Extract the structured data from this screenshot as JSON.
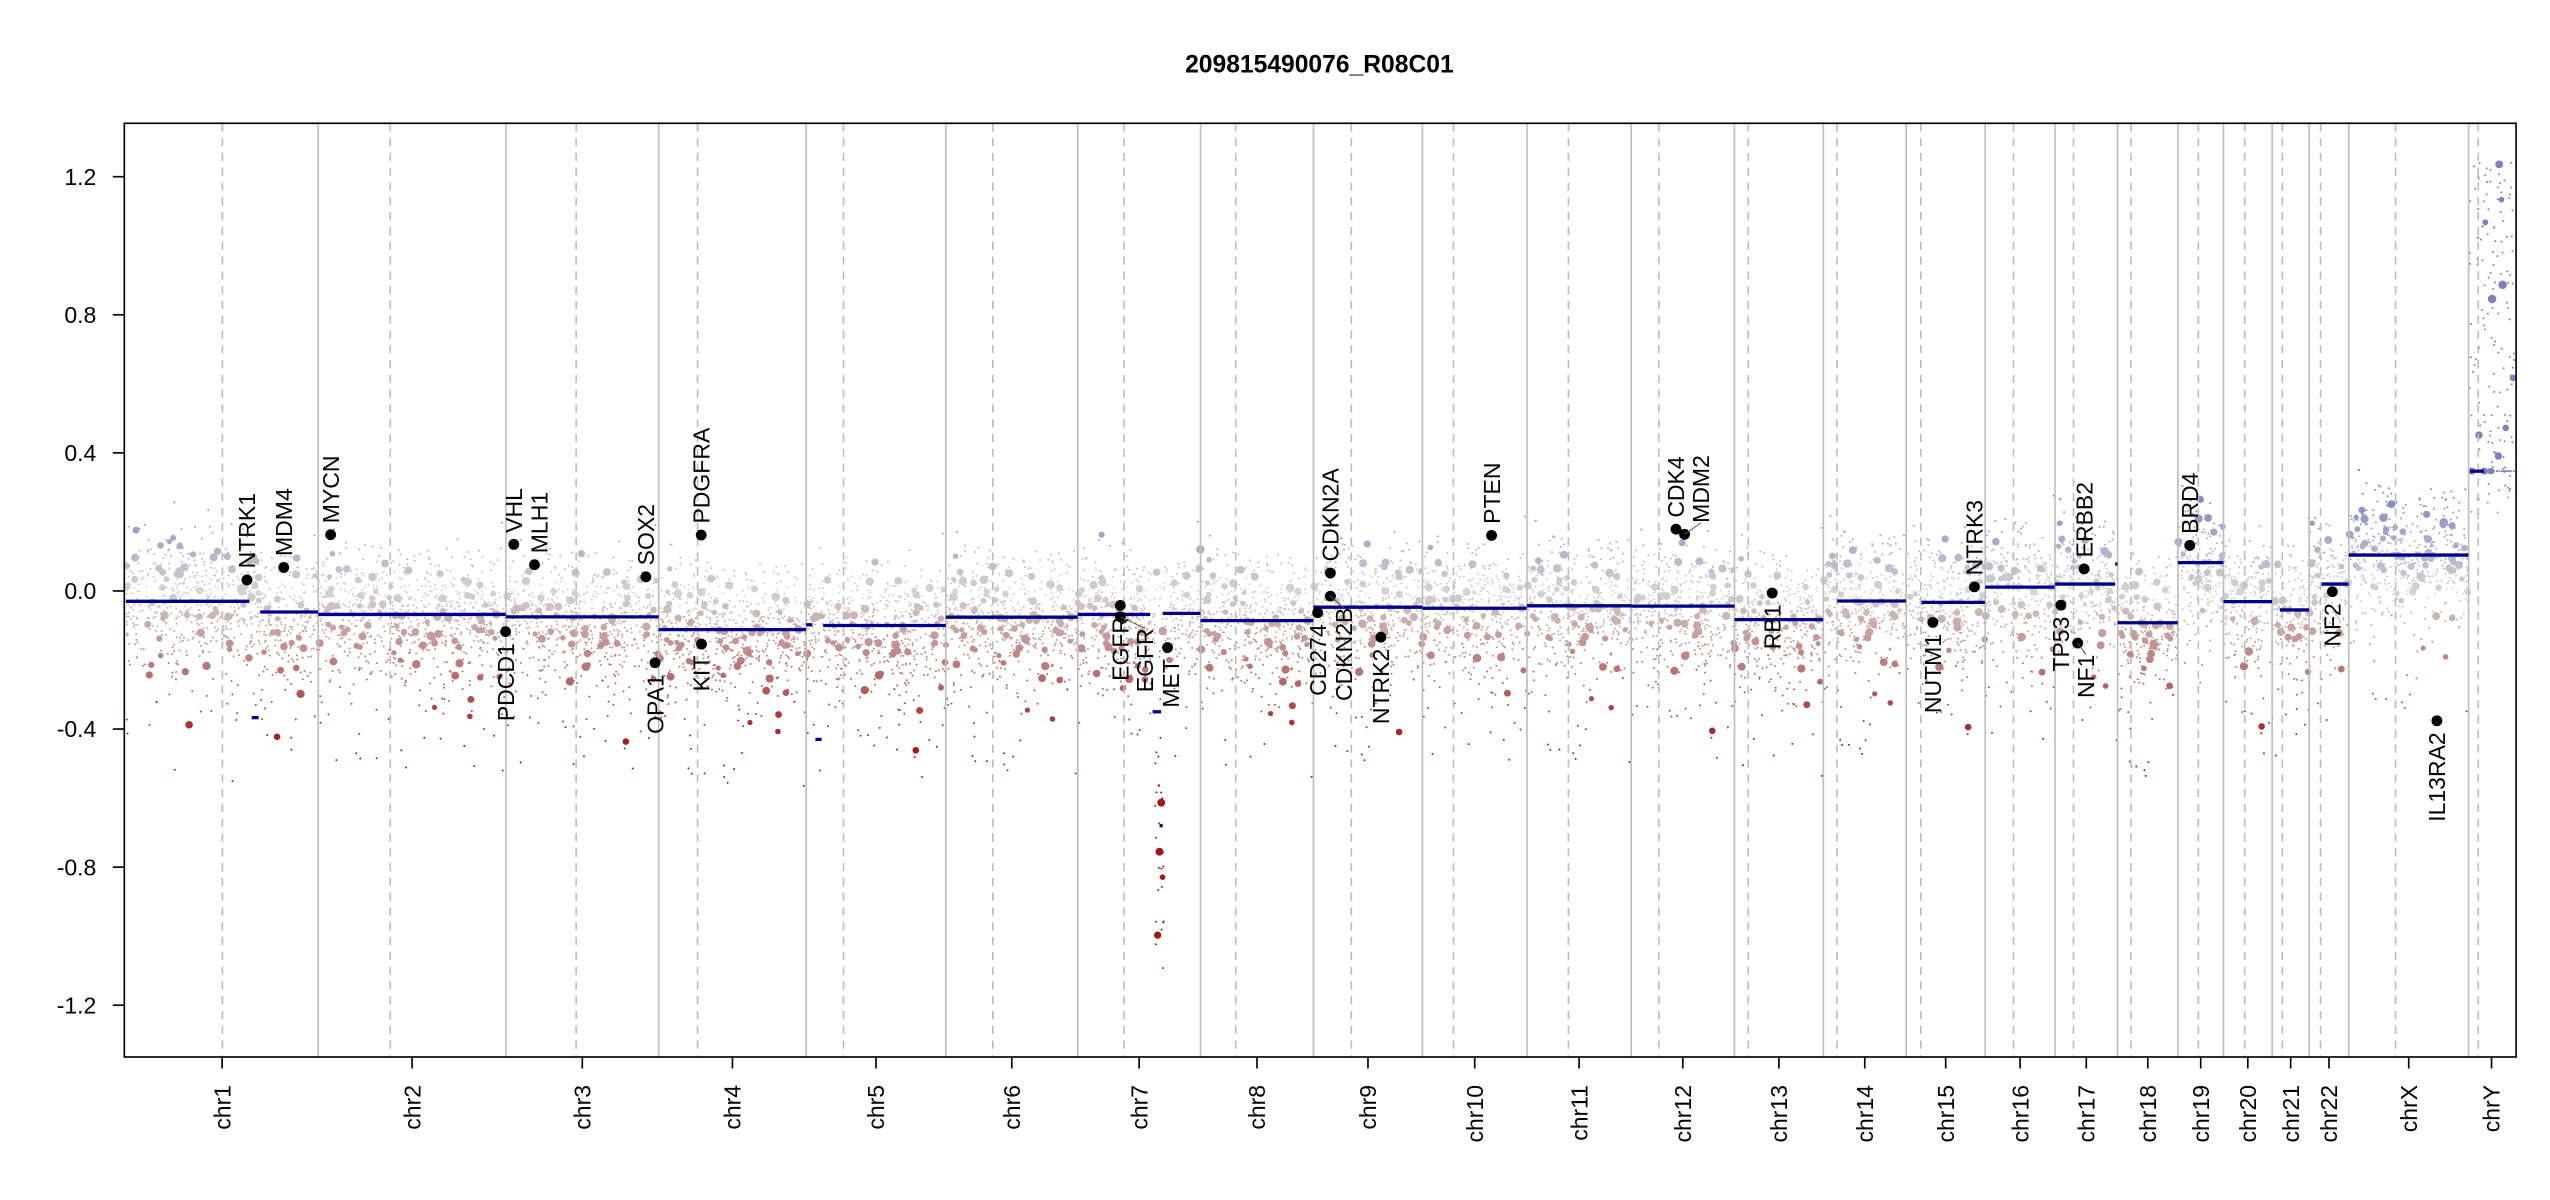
{
  "chart_data": {
    "type": "scatter",
    "title": "209815490076_R08C01",
    "xlabel": "",
    "ylabel": "",
    "ylim": [
      -1.35,
      1.35
    ],
    "yticks": [
      -1.2,
      -0.8,
      -0.4,
      0.0,
      0.4,
      0.8,
      1.2
    ],
    "ytick_labels": [
      "-1.2",
      "-0.8",
      "-0.4",
      "0.0",
      "0.4",
      "0.8",
      "1.2"
    ],
    "grid": false,
    "legend": "none",
    "colors": {
      "segment": "#00008b",
      "gain": "#7f7fbf",
      "neutral": "#d3d3d3",
      "loss": "#a01818",
      "gene": "#000000",
      "chr_line": "#bdbdbd"
    },
    "chromosomes": [
      {
        "name": "chr1",
        "length_mb": 249.25,
        "centromere_mb": 125.0
      },
      {
        "name": "chr2",
        "length_mb": 243.2,
        "centromere_mb": 93.3
      },
      {
        "name": "chr3",
        "length_mb": 198.0,
        "centromere_mb": 91.0
      },
      {
        "name": "chr4",
        "length_mb": 191.15,
        "centromere_mb": 50.4
      },
      {
        "name": "chr5",
        "length_mb": 180.9,
        "centromere_mb": 48.4
      },
      {
        "name": "chr6",
        "length_mb": 171.1,
        "centromere_mb": 61.0
      },
      {
        "name": "chr7",
        "length_mb": 159.1,
        "centromere_mb": 59.9
      },
      {
        "name": "chr8",
        "length_mb": 146.4,
        "centromere_mb": 45.6
      },
      {
        "name": "chr9",
        "length_mb": 141.2,
        "centromere_mb": 49.0
      },
      {
        "name": "chr10",
        "length_mb": 135.5,
        "centromere_mb": 40.2
      },
      {
        "name": "chr11",
        "length_mb": 135.0,
        "centromere_mb": 53.7
      },
      {
        "name": "chr12",
        "length_mb": 133.9,
        "centromere_mb": 35.8
      },
      {
        "name": "chr13",
        "length_mb": 115.2,
        "centromere_mb": 17.9
      },
      {
        "name": "chr14",
        "length_mb": 107.3,
        "centromere_mb": 17.6
      },
      {
        "name": "chr15",
        "length_mb": 102.5,
        "centromere_mb": 19.0
      },
      {
        "name": "chr16",
        "length_mb": 90.4,
        "centromere_mb": 36.6
      },
      {
        "name": "chr17",
        "length_mb": 81.2,
        "centromere_mb": 24.0
      },
      {
        "name": "chr18",
        "length_mb": 78.1,
        "centromere_mb": 17.2
      },
      {
        "name": "chr19",
        "length_mb": 59.1,
        "centromere_mb": 26.5
      },
      {
        "name": "chr20",
        "length_mb": 63.0,
        "centromere_mb": 27.5
      },
      {
        "name": "chr21",
        "length_mb": 48.1,
        "centromere_mb": 13.2
      },
      {
        "name": "chr22",
        "length_mb": 51.3,
        "centromere_mb": 14.7
      },
      {
        "name": "chrX",
        "length_mb": 155.3,
        "centromere_mb": 60.6
      },
      {
        "name": "chrY",
        "length_mb": 59.4,
        "centromere_mb": 12.5
      }
    ],
    "segments": [
      {
        "chr": "chr1",
        "start": 0,
        "end": 160,
        "value": -0.03
      },
      {
        "chr": "chr1",
        "start": 163,
        "end": 172,
        "value": -0.367
      },
      {
        "chr": "chr1",
        "start": 174,
        "end": 249,
        "value": -0.061
      },
      {
        "chr": "chr2",
        "start": 0,
        "end": 243,
        "value": -0.068
      },
      {
        "chr": "chr3",
        "start": 0,
        "end": 198,
        "value": -0.075
      },
      {
        "chr": "chr4",
        "start": 0,
        "end": 191,
        "value": -0.112
      },
      {
        "chr": "chr5",
        "start": 0,
        "end": 8,
        "value": -0.098
      },
      {
        "chr": "chr5",
        "start": 12,
        "end": 20,
        "value": -0.43
      },
      {
        "chr": "chr5",
        "start": 22,
        "end": 181,
        "value": -0.1
      },
      {
        "chr": "chr6",
        "start": 0,
        "end": 171,
        "value": -0.076
      },
      {
        "chr": "chr7",
        "start": 0,
        "end": 94,
        "value": -0.068
      },
      {
        "chr": "chr7",
        "start": 97,
        "end": 108,
        "value": -0.35
      },
      {
        "chr": "chr7",
        "start": 106,
        "end": 110,
        "value": -0.68
      },
      {
        "chr": "chr7",
        "start": 110,
        "end": 159,
        "value": -0.065
      },
      {
        "chr": "chr8",
        "start": 0,
        "end": 146,
        "value": -0.086
      },
      {
        "chr": "chr9",
        "start": 0,
        "end": 141,
        "value": -0.047
      },
      {
        "chr": "chr10",
        "start": 0,
        "end": 135,
        "value": -0.05
      },
      {
        "chr": "chr11",
        "start": 0,
        "end": 135,
        "value": -0.043
      },
      {
        "chr": "chr12",
        "start": 0,
        "end": 134,
        "value": -0.044
      },
      {
        "chr": "chr13",
        "start": 0,
        "end": 115,
        "value": -0.083
      },
      {
        "chr": "chr14",
        "start": 18,
        "end": 107,
        "value": -0.029
      },
      {
        "chr": "chr15",
        "start": 20,
        "end": 102,
        "value": -0.033
      },
      {
        "chr": "chr16",
        "start": 0,
        "end": 90,
        "value": 0.011
      },
      {
        "chr": "chr17",
        "start": 0,
        "end": 78,
        "value": 0.02
      },
      {
        "chr": "chr17",
        "start": 78,
        "end": 81,
        "value": 0.078
      },
      {
        "chr": "chr18",
        "start": 0,
        "end": 78,
        "value": -0.092
      },
      {
        "chr": "chr19",
        "start": 0,
        "end": 59,
        "value": 0.082
      },
      {
        "chr": "chr20",
        "start": 0,
        "end": 63,
        "value": -0.031
      },
      {
        "chr": "chr21",
        "start": 10,
        "end": 48,
        "value": -0.055
      },
      {
        "chr": "chr22",
        "start": 16,
        "end": 51,
        "value": 0.02
      },
      {
        "chr": "chrX",
        "start": 0,
        "end": 155,
        "value": 0.104
      },
      {
        "chr": "chrY",
        "start": 2,
        "end": 20,
        "value": 0.347
      }
    ],
    "genes": [
      {
        "name": "NTRK1",
        "chr": "chr1",
        "pos": 156.8,
        "value": 0.032,
        "label_pos": "above"
      },
      {
        "name": "MDM4",
        "chr": "chr1",
        "pos": 204.5,
        "value": 0.068,
        "label_pos": "above"
      },
      {
        "name": "MYCN",
        "chr": "chr2",
        "pos": 16.0,
        "value": 0.163,
        "label_pos": "above"
      },
      {
        "name": "PDCD1",
        "chr": "chr2",
        "pos": 242.8,
        "value": -0.118,
        "label_pos": "below"
      },
      {
        "name": "VHL",
        "chr": "chr3",
        "pos": 10.2,
        "value": 0.135,
        "label_pos": "above"
      },
      {
        "name": "MLH1",
        "chr": "chr3",
        "pos": 37.0,
        "value": 0.076,
        "label_pos": "above"
      },
      {
        "name": "SOX2",
        "chr": "chr3",
        "pos": 181.4,
        "value": 0.041,
        "label_pos": "above"
      },
      {
        "name": "OPA1",
        "chr": "chr3",
        "pos": 193.3,
        "value": -0.208,
        "label_pos": "below"
      },
      {
        "name": "PDGFRA",
        "chr": "chr4",
        "pos": 55.1,
        "value": 0.162,
        "label_pos": "above"
      },
      {
        "name": "KIT",
        "chr": "chr4",
        "pos": 55.5,
        "value": -0.154,
        "label_pos": "below"
      },
      {
        "name": "EGFR",
        "chr": "chr7",
        "pos": 55.1,
        "value": -0.042,
        "label_pos": "below"
      },
      {
        "name": "EGFR",
        "chr": "chr7",
        "pos": 55.2,
        "value": -0.075,
        "label_pos": "below"
      },
      {
        "name": "MET",
        "chr": "chr7",
        "pos": 116.3,
        "value": -0.164,
        "label_pos": "below"
      },
      {
        "name": "CD274",
        "chr": "chr9",
        "pos": 5.4,
        "value": -0.063,
        "label_pos": "below"
      },
      {
        "name": "CDKN2B",
        "chr": "chr9",
        "pos": 22.0,
        "value": -0.015,
        "label_pos": "below"
      },
      {
        "name": "CDKN2A",
        "chr": "chr9",
        "pos": 21.9,
        "value": 0.052,
        "label_pos": "above"
      },
      {
        "name": "NTRK2",
        "chr": "chr9",
        "pos": 87.3,
        "value": -0.134,
        "label_pos": "below"
      },
      {
        "name": "PTEN",
        "chr": "chr10",
        "pos": 89.6,
        "value": 0.161,
        "label_pos": "above"
      },
      {
        "name": "CDK4",
        "chr": "chr12",
        "pos": 58.1,
        "value": 0.179,
        "label_pos": "above"
      },
      {
        "name": "MDM2",
        "chr": "chr12",
        "pos": 69.2,
        "value": 0.164,
        "label_pos": "above"
      },
      {
        "name": "RB1",
        "chr": "chr13",
        "pos": 48.9,
        "value": -0.006,
        "label_pos": "below"
      },
      {
        "name": "NUTM1",
        "chr": "chr15",
        "pos": 34.6,
        "value": -0.091,
        "label_pos": "below"
      },
      {
        "name": "NTRK3",
        "chr": "chr15",
        "pos": 88.5,
        "value": 0.012,
        "label_pos": "above"
      },
      {
        "name": "TP53",
        "chr": "chr17",
        "pos": 7.6,
        "value": -0.041,
        "label_pos": "below"
      },
      {
        "name": "NF1",
        "chr": "chr17",
        "pos": 29.5,
        "value": -0.151,
        "label_pos": "below"
      },
      {
        "name": "ERBB2",
        "chr": "chr17",
        "pos": 37.8,
        "value": 0.064,
        "label_pos": "above"
      },
      {
        "name": "BRD4",
        "chr": "chr19",
        "pos": 15.4,
        "value": 0.132,
        "label_pos": "above"
      },
      {
        "name": "NF2",
        "chr": "chr22",
        "pos": 30.0,
        "value": -0.002,
        "label_pos": "below"
      },
      {
        "name": "IL13RA2",
        "chr": "chrX",
        "pos": 114.2,
        "value": -0.376,
        "label_pos": "below"
      }
    ]
  }
}
